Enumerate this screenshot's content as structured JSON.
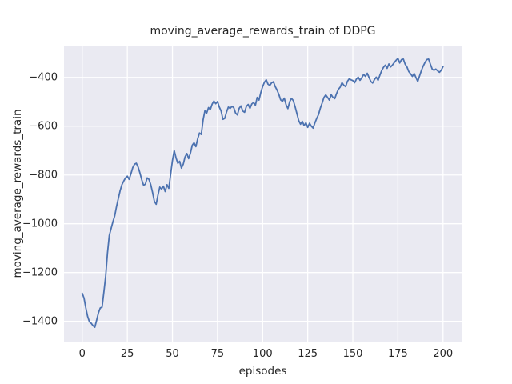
{
  "chart_data": {
    "type": "line",
    "title": "moving_average_rewards_train of DDPG",
    "xlabel": "episodes",
    "ylabel": "moving_average_rewards_train",
    "grid": true,
    "legend": null,
    "xlim": [
      -10.1,
      210.3
    ],
    "ylim": [
      -1483,
      -273
    ],
    "x_ticks": [
      0,
      25,
      50,
      75,
      100,
      125,
      150,
      175,
      200
    ],
    "x_tick_labels": [
      "0",
      "25",
      "50",
      "75",
      "100",
      "125",
      "150",
      "175",
      "200"
    ],
    "y_ticks": [
      -400,
      -600,
      -800,
      -1000,
      -1200,
      -1400
    ],
    "y_tick_labels": [
      "−400",
      "−600",
      "−800",
      "−1000",
      "−1200",
      "−1400"
    ],
    "style": {
      "figure_bg": "#ffffff",
      "axes_bg": "#eaeaf2",
      "grid_color": "#ffffff",
      "line_color": "#4c72b0",
      "text_color": "#262626"
    },
    "series": [
      {
        "name": "DDPG moving average rewards (train)",
        "x": [
          0,
          1,
          2,
          3,
          4,
          5,
          6,
          7,
          8,
          9,
          10,
          11,
          12,
          13,
          14,
          15,
          16,
          17,
          18,
          19,
          20,
          21,
          22,
          23,
          24,
          25,
          26,
          27,
          28,
          29,
          30,
          31,
          32,
          33,
          34,
          35,
          36,
          37,
          38,
          39,
          40,
          41,
          42,
          43,
          44,
          45,
          46,
          47,
          48,
          49,
          50,
          51,
          52,
          53,
          54,
          55,
          56,
          57,
          58,
          59,
          60,
          61,
          62,
          63,
          64,
          65,
          66,
          67,
          68,
          69,
          70,
          71,
          72,
          73,
          74,
          75,
          76,
          77,
          78,
          79,
          80,
          81,
          82,
          83,
          84,
          85,
          86,
          87,
          88,
          89,
          90,
          91,
          92,
          93,
          94,
          95,
          96,
          97,
          98,
          99,
          100,
          101,
          102,
          103,
          104,
          105,
          106,
          107,
          108,
          109,
          110,
          111,
          112,
          113,
          114,
          115,
          116,
          117,
          118,
          119,
          120,
          121,
          122,
          123,
          124,
          125,
          126,
          127,
          128,
          129,
          130,
          131,
          132,
          133,
          134,
          135,
          136,
          137,
          138,
          139,
          140,
          141,
          142,
          143,
          144,
          145,
          146,
          147,
          148,
          149,
          150,
          151,
          152,
          153,
          154,
          155,
          156,
          157,
          158,
          159,
          160,
          161,
          162,
          163,
          164,
          165,
          166,
          167,
          168,
          169,
          170,
          171,
          172,
          173,
          174,
          175,
          176,
          177,
          178,
          179,
          180,
          181,
          182,
          183,
          184,
          185,
          186,
          187,
          188,
          189,
          190,
          191,
          192,
          193,
          194,
          195,
          196,
          197,
          198,
          199,
          200
        ],
        "y": [
          -1285,
          -1305,
          -1345,
          -1380,
          -1402,
          -1408,
          -1418,
          -1424,
          -1395,
          -1365,
          -1345,
          -1342,
          -1280,
          -1215,
          -1120,
          -1048,
          -1020,
          -992,
          -968,
          -930,
          -897,
          -865,
          -840,
          -825,
          -812,
          -805,
          -818,
          -795,
          -770,
          -756,
          -752,
          -768,
          -792,
          -820,
          -842,
          -838,
          -812,
          -818,
          -840,
          -872,
          -908,
          -920,
          -882,
          -850,
          -858,
          -846,
          -868,
          -840,
          -855,
          -798,
          -742,
          -700,
          -730,
          -752,
          -744,
          -772,
          -756,
          -726,
          -712,
          -733,
          -710,
          -678,
          -668,
          -684,
          -652,
          -628,
          -634,
          -575,
          -537,
          -546,
          -524,
          -532,
          -510,
          -497,
          -508,
          -499,
          -522,
          -538,
          -572,
          -568,
          -542,
          -522,
          -527,
          -519,
          -524,
          -546,
          -554,
          -527,
          -517,
          -538,
          -543,
          -519,
          -511,
          -527,
          -509,
          -503,
          -514,
          -482,
          -493,
          -462,
          -438,
          -420,
          -410,
          -428,
          -433,
          -422,
          -418,
          -438,
          -452,
          -470,
          -492,
          -498,
          -485,
          -512,
          -528,
          -500,
          -486,
          -495,
          -520,
          -548,
          -577,
          -592,
          -580,
          -598,
          -586,
          -605,
          -588,
          -600,
          -608,
          -586,
          -568,
          -552,
          -526,
          -505,
          -482,
          -472,
          -482,
          -493,
          -471,
          -482,
          -487,
          -466,
          -449,
          -440,
          -422,
          -432,
          -438,
          -416,
          -406,
          -410,
          -413,
          -422,
          -407,
          -399,
          -412,
          -401,
          -388,
          -396,
          -383,
          -401,
          -417,
          -423,
          -409,
          -399,
          -412,
          -391,
          -372,
          -359,
          -350,
          -363,
          -345,
          -357,
          -349,
          -339,
          -330,
          -322,
          -341,
          -327,
          -325,
          -346,
          -357,
          -376,
          -385,
          -396,
          -384,
          -401,
          -417,
          -394,
          -372,
          -354,
          -339,
          -327,
          -325,
          -346,
          -366,
          -371,
          -366,
          -373,
          -379,
          -371,
          -356
        ]
      }
    ]
  }
}
